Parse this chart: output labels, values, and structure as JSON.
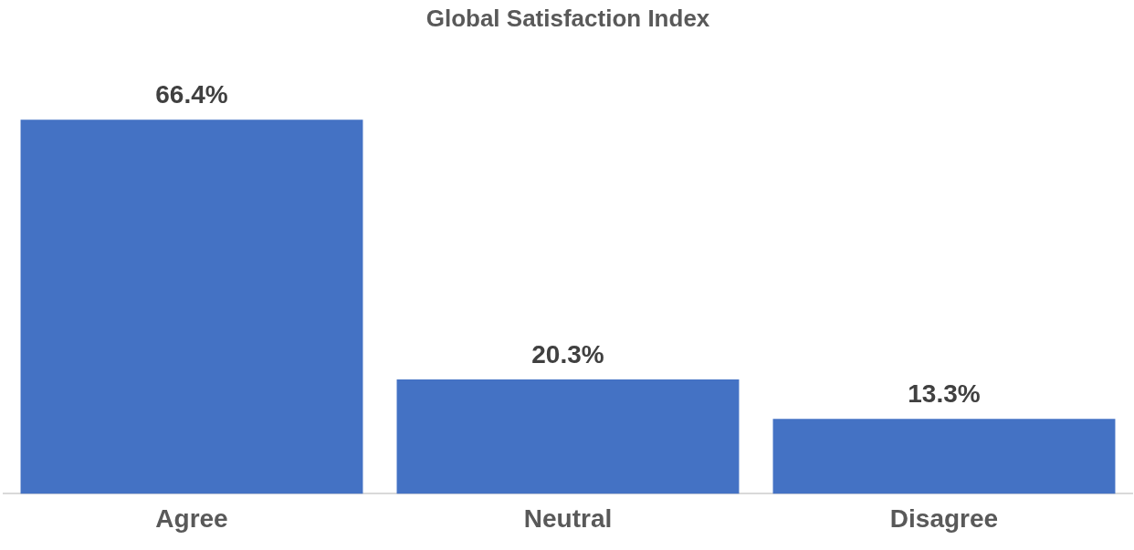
{
  "chart_data": {
    "type": "bar",
    "title": "Global Satisfaction Index",
    "categories": [
      "Agree",
      "Neutral",
      "Disagree"
    ],
    "values": [
      66.4,
      20.3,
      13.3
    ],
    "value_labels": [
      "66.4%",
      "20.3%",
      "13.3%"
    ],
    "color": "#4472c4",
    "grid": false,
    "legend": false
  }
}
